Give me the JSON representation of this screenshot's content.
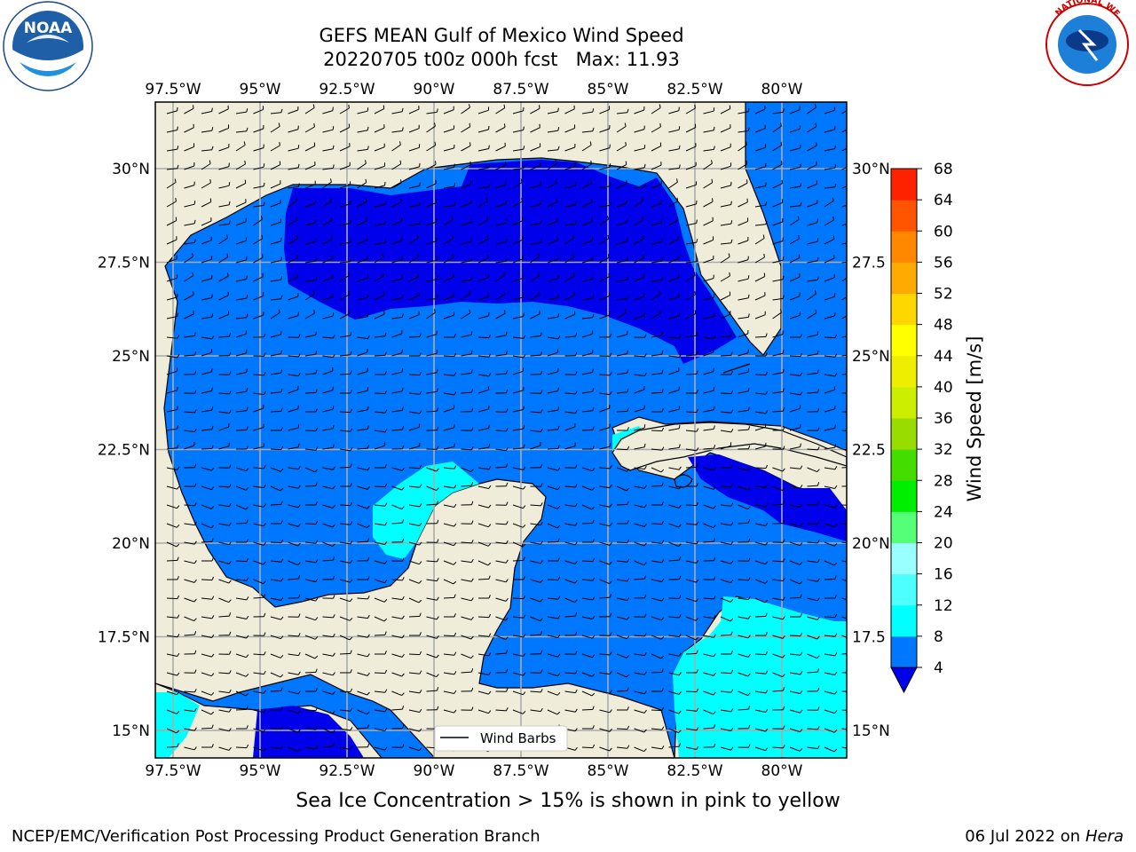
{
  "header": {
    "title": "GEFS MEAN Gulf of Mexico Wind Speed",
    "subtitle": "20220705 t00z 000h fcst   Max: 11.93"
  },
  "footer": {
    "left": "NCEP/EMC/Verification Post Processing Product Generation Branch",
    "right_date": "06 Jul 2022 on ",
    "right_host": "Hera"
  },
  "note": "Sea Ice Concentration > 15% is shown in pink to yellow",
  "logos": {
    "noaa_text": "NOAA",
    "nws_ring_text": "NATIONAL WEATHER SERVICE"
  },
  "map": {
    "lon_labels": [
      "97.5°W",
      "95°W",
      "92.5°W",
      "90°W",
      "87.5°W",
      "85°W",
      "82.5°W",
      "80°W"
    ],
    "lat_labels": [
      "30°N",
      "27.5°N",
      "25°N",
      "22.5°N",
      "20°N",
      "17.5°N",
      "15°N"
    ],
    "lat_labels_right": [
      "30°N",
      "27.5",
      "25°N",
      "22.5",
      "20°N",
      "17.5",
      "15°N"
    ],
    "lon_range": [
      -98,
      -78
    ],
    "lat_range": [
      14,
      31.8
    ],
    "legend_label": "Wind Barbs",
    "colors": {
      "land": "#efedda",
      "ocean_4_8": "#0077ff",
      "ocean_lt4": "#0000ea",
      "ocean_8_12": "#00ffff"
    }
  },
  "colorbar": {
    "label": "Wind Speed [m/s]",
    "ticks": [
      "4",
      "8",
      "12",
      "16",
      "20",
      "24",
      "28",
      "32",
      "36",
      "40",
      "44",
      "48",
      "52",
      "56",
      "60",
      "64",
      "68"
    ],
    "colors": [
      "#0077ff",
      "#00ffff",
      "#4dffff",
      "#99ffff",
      "#55ff77",
      "#00ee00",
      "#44dd00",
      "#99dd00",
      "#ccee00",
      "#eeee00",
      "#ffff00",
      "#ffd700",
      "#ffaa00",
      "#ff8800",
      "#ff5500",
      "#ff2200"
    ],
    "under_color": "#0000ea"
  }
}
